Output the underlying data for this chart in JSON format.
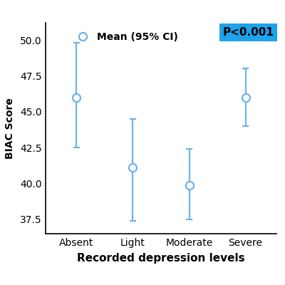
{
  "categories": [
    "Absent",
    "Light",
    "Moderate",
    "Severe"
  ],
  "means": [
    46.0,
    41.1,
    39.9,
    46.0
  ],
  "ci_lower": [
    42.5,
    37.4,
    37.5,
    44.0
  ],
  "ci_upper": [
    49.8,
    44.5,
    42.4,
    48.0
  ],
  "ylim": [
    36.5,
    51.2
  ],
  "yticks": [
    37.5,
    40.0,
    42.5,
    45.0,
    47.5,
    50.0
  ],
  "xlabel": "Recorded depression levels",
  "ylabel": "BIAC Score",
  "legend_label": "Mean (95% CI)",
  "pvalue_text": "P<0.001",
  "pvalue_bg": "#1CA3EC",
  "marker_color": "#6EB4E8",
  "marker_size": 8,
  "line_width": 1.6,
  "background_color": "#ffffff"
}
